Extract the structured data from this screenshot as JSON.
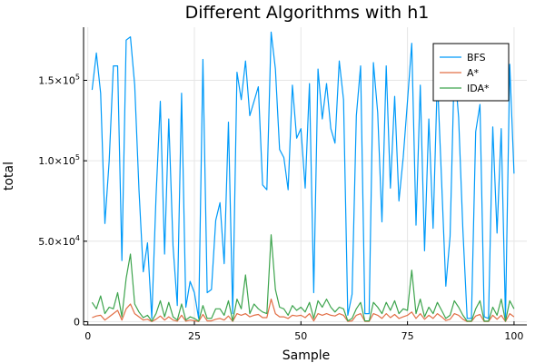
{
  "chart_data": {
    "type": "line",
    "title": "Different Algorithms with h1",
    "xlabel": "Sample",
    "ylabel": "total",
    "xlim": [
      -1,
      103
    ],
    "ylim": [
      -2000,
      183000
    ],
    "grid": true,
    "legend_position": "top-right",
    "x_ticks": [
      {
        "value": 0,
        "label": "0"
      },
      {
        "value": 25,
        "label": "25"
      },
      {
        "value": 50,
        "label": "50"
      },
      {
        "value": 75,
        "label": "75"
      },
      {
        "value": 100,
        "label": "100"
      }
    ],
    "y_ticks": [
      {
        "value": 0,
        "base": "0",
        "exp": ""
      },
      {
        "value": 50000,
        "base": "5.0×10",
        "exp": "4"
      },
      {
        "value": 100000,
        "base": "1.0×10",
        "exp": "5"
      },
      {
        "value": 150000,
        "base": "1.5×10",
        "exp": "5"
      }
    ],
    "x": [
      1,
      2,
      3,
      4,
      5,
      6,
      7,
      8,
      9,
      10,
      11,
      12,
      13,
      14,
      15,
      16,
      17,
      18,
      19,
      20,
      21,
      22,
      23,
      24,
      25,
      26,
      27,
      28,
      29,
      30,
      31,
      32,
      33,
      34,
      35,
      36,
      37,
      38,
      39,
      40,
      41,
      42,
      43,
      44,
      45,
      46,
      47,
      48,
      49,
      50,
      51,
      52,
      53,
      54,
      55,
      56,
      57,
      58,
      59,
      60,
      61,
      62,
      63,
      64,
      65,
      66,
      67,
      68,
      69,
      70,
      71,
      72,
      73,
      74,
      75,
      76,
      77,
      78,
      79,
      80,
      81,
      82,
      83,
      84,
      85,
      86,
      87,
      88,
      89,
      90,
      91,
      92,
      93,
      94,
      95,
      96,
      97,
      98,
      99,
      100
    ],
    "series": [
      {
        "name": "BFS",
        "color": "#009af9",
        "values": [
          144000,
          167000,
          142000,
          61000,
          100000,
          159000,
          159000,
          38000,
          175000,
          177000,
          147000,
          82000,
          31000,
          49000,
          2000,
          78000,
          137000,
          42000,
          126000,
          47000,
          10000,
          142000,
          9000,
          25000,
          18000,
          2000,
          163000,
          18000,
          20000,
          63000,
          74000,
          36000,
          124000,
          5000,
          155000,
          138000,
          162000,
          128000,
          137000,
          146000,
          85000,
          82000,
          180000,
          157000,
          107000,
          102000,
          82000,
          147000,
          114000,
          120000,
          83000,
          148000,
          18000,
          157000,
          126000,
          148000,
          120000,
          111000,
          162000,
          138000,
          4000,
          17000,
          128000,
          159000,
          5000,
          5000,
          161000,
          130000,
          62000,
          159000,
          83000,
          140000,
          75000,
          102000,
          137000,
          173000,
          60000,
          147000,
          44000,
          126000,
          58000,
          152000,
          87000,
          22000,
          53000,
          160000,
          127000,
          57000,
          2000,
          2000,
          118000,
          135000,
          3000,
          2000,
          121000,
          55000,
          120000,
          2000,
          160000,
          92000
        ]
      },
      {
        "name": "A*",
        "color": "#e26f46",
        "values": [
          2500,
          3500,
          4000,
          1000,
          3000,
          5000,
          7000,
          1000,
          8000,
          11000,
          5000,
          3000,
          1000,
          1500,
          100,
          1500,
          3500,
          1000,
          3000,
          1000,
          300,
          4000,
          300,
          1000,
          600,
          100,
          4500,
          500,
          500,
          1500,
          2000,
          1000,
          3500,
          200,
          5000,
          4000,
          5000,
          3000,
          4000,
          4500,
          2500,
          2500,
          14000,
          5000,
          3000,
          3000,
          2000,
          4000,
          3500,
          4000,
          2500,
          5000,
          500,
          5000,
          4000,
          5000,
          4000,
          3500,
          5000,
          4000,
          200,
          500,
          4000,
          5000,
          200,
          200,
          5000,
          4000,
          2000,
          5000,
          2500,
          4500,
          2000,
          3000,
          4000,
          6000,
          2000,
          5000,
          1500,
          4000,
          2000,
          5000,
          3000,
          700,
          1500,
          5000,
          4000,
          1500,
          100,
          100,
          3500,
          4500,
          100,
          100,
          4000,
          1500,
          4000,
          100,
          5000,
          3000
        ]
      },
      {
        "name": "IDA*",
        "color": "#3da44d",
        "values": [
          12000,
          8000,
          16000,
          5000,
          9000,
          8000,
          18000,
          3000,
          27000,
          42000,
          11000,
          6000,
          2500,
          4000,
          300,
          5000,
          13000,
          3000,
          12000,
          3000,
          1000,
          11000,
          1000,
          3000,
          2000,
          300,
          10000,
          2000,
          2000,
          8000,
          8000,
          4000,
          13000,
          500,
          14000,
          8000,
          29000,
          5000,
          11000,
          8000,
          6000,
          5000,
          54000,
          20000,
          9000,
          8000,
          4000,
          10000,
          7000,
          9000,
          6000,
          12000,
          2000,
          13000,
          9000,
          14000,
          9000,
          6000,
          9000,
          8000,
          500,
          2000,
          8000,
          12000,
          500,
          500,
          12000,
          9000,
          5000,
          12000,
          7000,
          13000,
          5000,
          8000,
          7000,
          32000,
          5000,
          14000,
          3000,
          9000,
          5000,
          12000,
          7000,
          2000,
          4000,
          13000,
          9000,
          4000,
          300,
          300,
          8000,
          13000,
          300,
          300,
          9000,
          4000,
          14000,
          300,
          13000,
          8000
        ]
      }
    ]
  }
}
